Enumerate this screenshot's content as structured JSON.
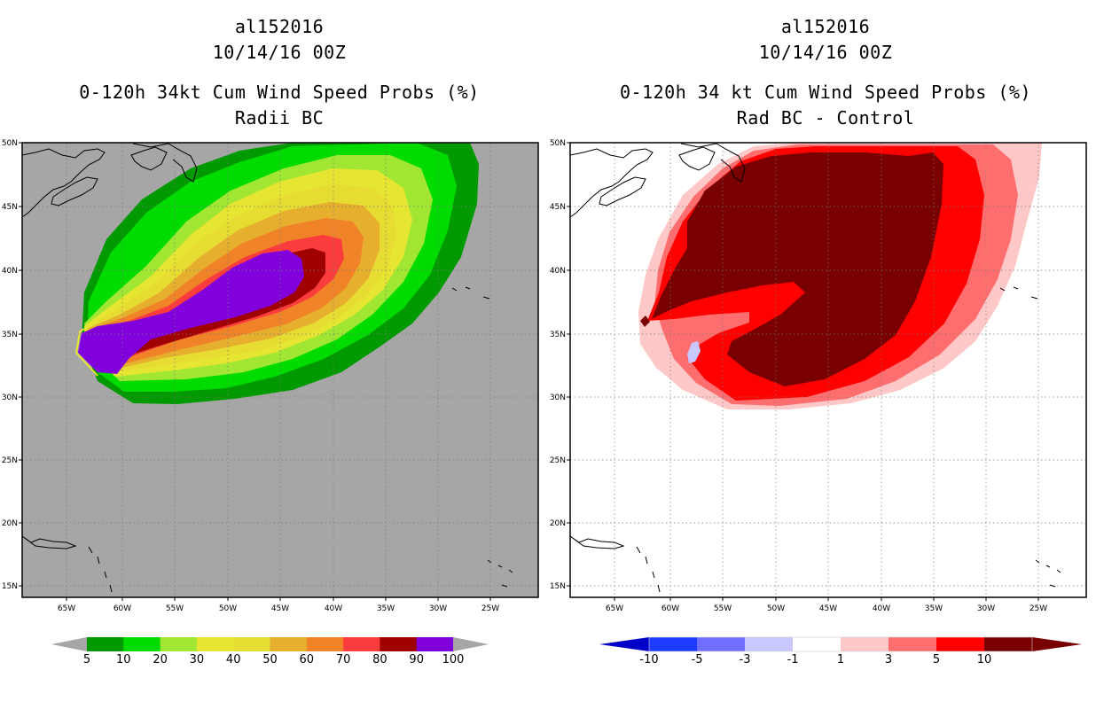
{
  "left_panel": {
    "title_line1": "al152016",
    "title_line2": "10/14/16 00Z",
    "title_line3": "0-120h 34kt Cum Wind Speed Probs (%)",
    "title_line4": "Radii BC",
    "colorbar": {
      "colors": [
        "#009a00",
        "#00dc00",
        "#a0e632",
        "#e6e632",
        "#e6dc32",
        "#e6af2d",
        "#f08228",
        "#fa3c3c",
        "#a00000",
        "#8200dc"
      ],
      "labels": [
        "5",
        "10",
        "20",
        "30",
        "40",
        "50",
        "60",
        "70",
        "80",
        "90",
        "100"
      ],
      "end_color": "#a6a6a6"
    }
  },
  "right_panel": {
    "title_line1": "al152016",
    "title_line2": "10/14/16 00Z",
    "title_line3": "0-120h 34 kt Cum Wind Speed Probs (%)",
    "title_line4": "Rad BC - Control",
    "colorbar": {
      "colors": [
        "#0000c8",
        "#1e3cff",
        "#6e6eff",
        "#c8c8ff",
        "#ffffff",
        "#ffc8c8",
        "#ff6e6e",
        "#ff0000",
        "#780000"
      ],
      "labels": [
        "-10",
        "-5",
        "-3",
        "-1",
        "1",
        "3",
        "5",
        "10"
      ],
      "low_end_color": "#0000c8",
      "high_end_color": "#780000"
    }
  },
  "map": {
    "lon_ticks": [
      "65W",
      "60W",
      "55W",
      "50W",
      "45W",
      "40W",
      "35W",
      "30W",
      "25W"
    ],
    "lat_ticks": [
      "50N",
      "45N",
      "40N",
      "35N",
      "30N",
      "25N",
      "20N",
      "15N"
    ],
    "background_left": "#a6a6a6",
    "background_right": "#ffffff"
  }
}
